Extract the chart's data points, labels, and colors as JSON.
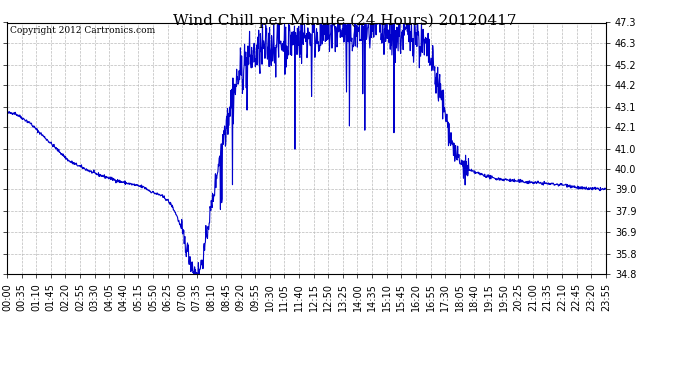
{
  "title": "Wind Chill per Minute (24 Hours) 20120417",
  "copyright_text": "Copyright 2012 Cartronics.com",
  "line_color": "#0000cc",
  "background_color": "#ffffff",
  "grid_color": "#bbbbbb",
  "ylim": [
    34.8,
    47.3
  ],
  "yticks": [
    34.8,
    35.8,
    36.9,
    37.9,
    39.0,
    40.0,
    41.0,
    42.1,
    43.1,
    44.2,
    45.2,
    46.3,
    47.3
  ],
  "xtick_labels": [
    "00:00",
    "00:35",
    "01:10",
    "01:45",
    "02:20",
    "02:55",
    "03:30",
    "04:05",
    "04:40",
    "05:15",
    "05:50",
    "06:25",
    "07:00",
    "07:35",
    "08:10",
    "08:45",
    "09:20",
    "09:55",
    "10:30",
    "11:05",
    "11:40",
    "12:15",
    "12:50",
    "13:25",
    "14:00",
    "14:35",
    "15:10",
    "15:45",
    "16:20",
    "16:55",
    "17:30",
    "18:05",
    "18:40",
    "19:15",
    "19:50",
    "20:25",
    "21:00",
    "21:35",
    "22:10",
    "22:45",
    "23:20",
    "23:55"
  ],
  "title_fontsize": 11,
  "tick_fontsize": 7,
  "copyright_fontsize": 6.5,
  "line_width": 0.8
}
